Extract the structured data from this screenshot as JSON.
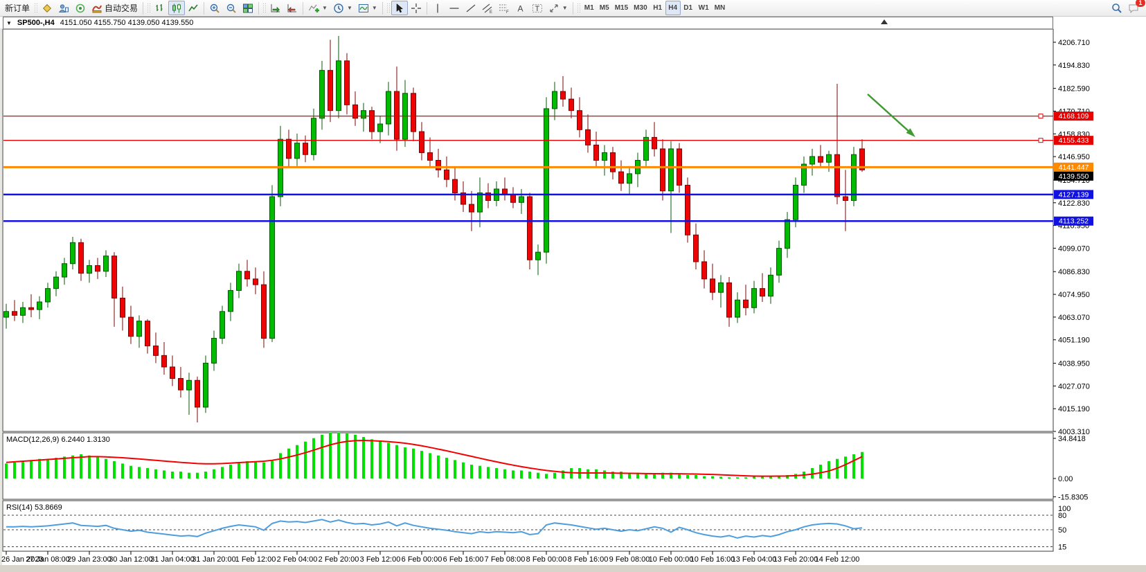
{
  "toolbar": {
    "new_order_label": "新订单",
    "auto_trading_label": "自动交易",
    "timeframes": [
      "M1",
      "M5",
      "M15",
      "M30",
      "H1",
      "H4",
      "D1",
      "W1",
      "MN"
    ],
    "active_timeframe": "H4",
    "notification_count": "1",
    "icon_names": [
      "market-watch-icon",
      "data-window-icon",
      "navigator-icon",
      "autotrading-icon",
      "bar-chart-icon",
      "candlestick-chart-icon",
      "line-chart-icon",
      "zoom-in-icon",
      "zoom-out-icon",
      "tile-windows-icon",
      "auto-scroll-icon",
      "chart-shift-icon",
      "add-indicator-icon",
      "periods-icon",
      "templates-icon",
      "cursor-icon",
      "crosshair-icon",
      "vertical-line-icon",
      "horizontal-line-icon",
      "trendline-icon",
      "equidistant-channel-icon",
      "fibonacci-icon",
      "text-icon",
      "text-label-icon",
      "arrows-icon",
      "search-icon",
      "notification-icon"
    ]
  },
  "chart": {
    "title": "SP500-,H4",
    "ohlc_text": "4151.050 4155.750 4139.050 4139.550"
  },
  "chart_data": {
    "type": "candlestick",
    "symbol": "SP500-",
    "timeframe": "H4",
    "current_bar_ohlc": {
      "open": 4151.05,
      "high": 4155.75,
      "low": 4139.05,
      "close": 4139.55
    },
    "current_price": 4139.55,
    "price_axis": {
      "min": 4003.31,
      "max": 4206.71,
      "ticks": [
        4206.71,
        4194.83,
        4182.59,
        4170.71,
        4158.83,
        4146.95,
        4134.71,
        4122.83,
        4110.95,
        4099.07,
        4086.83,
        4074.95,
        4063.07,
        4051.19,
        4038.95,
        4027.07,
        4015.19,
        4003.31
      ]
    },
    "time_axis": {
      "bars_per_label": 5,
      "labels": [
        "26 Jan 2023",
        "27 Jan 08:00",
        "29 Jan 23:00",
        "30 Jan 12:00",
        "31 Jan 04:00",
        "31 Jan 20:00",
        "1 Feb 12:00",
        "2 Feb 04:00",
        "2 Feb 20:00",
        "3 Feb 12:00",
        "6 Feb 00:00",
        "6 Feb 16:00",
        "7 Feb 08:00",
        "8 Feb 00:00",
        "8 Feb 16:00",
        "9 Feb 08:00",
        "10 Feb 00:00",
        "10 Feb 16:00",
        "13 Feb 04:00",
        "13 Feb 20:00",
        "14 Feb 12:00"
      ]
    },
    "levels": [
      {
        "price": 4168.109,
        "color": "#e60000",
        "width": 1.3,
        "marker": true
      },
      {
        "price": 4155.433,
        "color": "#e60000",
        "width": 1.3,
        "marker": true
      },
      {
        "price": 4141.447,
        "color": "#ff8a00",
        "width": 3,
        "marker": false
      },
      {
        "price": 4127.139,
        "color": "#1212e0",
        "width": 2.5,
        "marker": false
      },
      {
        "price": 4113.252,
        "color": "#1212e0",
        "width": 2.5,
        "marker": false
      }
    ],
    "trend_arrow": {
      "from": [
        1253,
        136
      ],
      "to": [
        1322,
        198
      ],
      "color": "#3f9b32"
    },
    "colors": {
      "bull": "#00bb00",
      "bull_stroke": "#035903",
      "bear": "#ee0404",
      "bear_stroke": "#7e0303",
      "macd_hist": "#00e100",
      "macd_signal": "#f40000",
      "rsi_line": "#4d9ede",
      "level_text": "#ffffff",
      "current_price_box": "#000000",
      "axis_text": "#000000"
    },
    "candles": [
      [
        4063,
        4070,
        4057,
        4066
      ],
      [
        4066,
        4072,
        4061,
        4064
      ],
      [
        4064,
        4071,
        4060,
        4068
      ],
      [
        4068,
        4075,
        4063,
        4067
      ],
      [
        4067,
        4074,
        4062,
        4071
      ],
      [
        4071,
        4081,
        4068,
        4078
      ],
      [
        4078,
        4087,
        4074,
        4084
      ],
      [
        4084,
        4094,
        4080,
        4091
      ],
      [
        4091,
        4105,
        4088,
        4102
      ],
      [
        4102,
        4104,
        4082,
        4086
      ],
      [
        4086,
        4093,
        4081,
        4090
      ],
      [
        4090,
        4094,
        4083,
        4087
      ],
      [
        4087,
        4098,
        4084,
        4095
      ],
      [
        4095,
        4097,
        4058,
        4073
      ],
      [
        4073,
        4079,
        4056,
        4063
      ],
      [
        4063,
        4069,
        4049,
        4053
      ],
      [
        4053,
        4064,
        4047,
        4061
      ],
      [
        4061,
        4062,
        4044,
        4048
      ],
      [
        4048,
        4055,
        4039,
        4043
      ],
      [
        4043,
        4050,
        4033,
        4037
      ],
      [
        4037,
        4043,
        4027,
        4031
      ],
      [
        4031,
        4037,
        4021,
        4025
      ],
      [
        4025,
        4034,
        4012,
        4030
      ],
      [
        4030,
        4032,
        4008,
        4016
      ],
      [
        4016,
        4043,
        4013,
        4039
      ],
      [
        4039,
        4056,
        4035,
        4052
      ],
      [
        4052,
        4069,
        4049,
        4066
      ],
      [
        4066,
        4081,
        4061,
        4077
      ],
      [
        4077,
        4091,
        4073,
        4087
      ],
      [
        4087,
        4093,
        4079,
        4083
      ],
      [
        4083,
        4089,
        4075,
        4080
      ],
      [
        4080,
        4087,
        4047,
        4052
      ],
      [
        4052,
        4132,
        4050,
        4126
      ],
      [
        4126,
        4163,
        4121,
        4156
      ],
      [
        4156,
        4161,
        4141,
        4146
      ],
      [
        4146,
        4159,
        4142,
        4154
      ],
      [
        4154,
        4158,
        4144,
        4148
      ],
      [
        4148,
        4172,
        4145,
        4167
      ],
      [
        4167,
        4197,
        4161,
        4192
      ],
      [
        4192,
        4208,
        4165,
        4171
      ],
      [
        4171,
        4210,
        4167,
        4197
      ],
      [
        4197,
        4201,
        4169,
        4174
      ],
      [
        4174,
        4181,
        4163,
        4167
      ],
      [
        4167,
        4175,
        4160,
        4171
      ],
      [
        4171,
        4173,
        4156,
        4160
      ],
      [
        4160,
        4168,
        4154,
        4164
      ],
      [
        4164,
        4186,
        4158,
        4181
      ],
      [
        4181,
        4194,
        4150,
        4156
      ],
      [
        4156,
        4187,
        4152,
        4180
      ],
      [
        4180,
        4183,
        4155,
        4160
      ],
      [
        4160,
        4165,
        4145,
        4149
      ],
      [
        4149,
        4157,
        4141,
        4145
      ],
      [
        4145,
        4151,
        4136,
        4140
      ],
      [
        4140,
        4147,
        4131,
        4135
      ],
      [
        4135,
        4141,
        4124,
        4128
      ],
      [
        4128,
        4134,
        4118,
        4122
      ],
      [
        4122,
        4129,
        4108,
        4118
      ],
      [
        4118,
        4136,
        4110,
        4128
      ],
      [
        4128,
        4133,
        4120,
        4124
      ],
      [
        4124,
        4134,
        4121,
        4130
      ],
      [
        4130,
        4136,
        4124,
        4127
      ],
      [
        4127,
        4131,
        4120,
        4123
      ],
      [
        4123,
        4130,
        4117,
        4126
      ],
      [
        4126,
        4128,
        4088,
        4093
      ],
      [
        4093,
        4101,
        4085,
        4097
      ],
      [
        4097,
        4178,
        4091,
        4172
      ],
      [
        4172,
        4186,
        4166,
        4181
      ],
      [
        4181,
        4189,
        4173,
        4177
      ],
      [
        4177,
        4183,
        4167,
        4171
      ],
      [
        4171,
        4178,
        4157,
        4161
      ],
      [
        4161,
        4169,
        4149,
        4153
      ],
      [
        4153,
        4160,
        4141,
        4145
      ],
      [
        4145,
        4153,
        4137,
        4149
      ],
      [
        4149,
        4152,
        4135,
        4139
      ],
      [
        4139,
        4145,
        4129,
        4133
      ],
      [
        4133,
        4142,
        4127,
        4138
      ],
      [
        4138,
        4149,
        4131,
        4145
      ],
      [
        4145,
        4161,
        4142,
        4157
      ],
      [
        4157,
        4165,
        4147,
        4151
      ],
      [
        4151,
        4156,
        4124,
        4129
      ],
      [
        4129,
        4155,
        4107,
        4151
      ],
      [
        4151,
        4154,
        4128,
        4132
      ],
      [
        4132,
        4136,
        4102,
        4106
      ],
      [
        4106,
        4112,
        4088,
        4092
      ],
      [
        4092,
        4098,
        4078,
        4083
      ],
      [
        4083,
        4091,
        4072,
        4076
      ],
      [
        4076,
        4085,
        4068,
        4081
      ],
      [
        4081,
        4084,
        4058,
        4063
      ],
      [
        4063,
        4076,
        4060,
        4072
      ],
      [
        4072,
        4080,
        4064,
        4068
      ],
      [
        4068,
        4082,
        4065,
        4078
      ],
      [
        4078,
        4086,
        4071,
        4074
      ],
      [
        4074,
        4089,
        4070,
        4085
      ],
      [
        4085,
        4103,
        4081,
        4099
      ],
      [
        4099,
        4118,
        4094,
        4114
      ],
      [
        4114,
        4136,
        4110,
        4132
      ],
      [
        4132,
        4147,
        4128,
        4143
      ],
      [
        4143,
        4151,
        4137,
        4147
      ],
      [
        4147,
        4153,
        4141,
        4144
      ],
      [
        4144,
        4150,
        4139,
        4148
      ],
      [
        4148,
        4185,
        4122,
        4126
      ],
      [
        4126,
        4140,
        4108,
        4124
      ],
      [
        4124,
        4152,
        4121,
        4148
      ],
      [
        4151,
        4156,
        4139,
        4140
      ]
    ],
    "indicators": {
      "macd": {
        "label": "MACD(12,26,9)",
        "values_text": "6.2440 1.3130",
        "axis_labels": [
          {
            "v": 34.8418,
            "t": "34.8418"
          },
          {
            "v": 0,
            "t": "0.00"
          },
          {
            "v": -15.8305,
            "t": "-15.8305"
          }
        ],
        "histogram": [
          13,
          14,
          15,
          16,
          17,
          17,
          18,
          19,
          20,
          21,
          20,
          19,
          17,
          15,
          13,
          11,
          10,
          9,
          8,
          7,
          6,
          6,
          5,
          5,
          6,
          8,
          10,
          12,
          14,
          15,
          15,
          14,
          16,
          22,
          26,
          29,
          32,
          35,
          38,
          40,
          40,
          39,
          38,
          36,
          34,
          33,
          31,
          29,
          27,
          26,
          24,
          22,
          20,
          18,
          16,
          14,
          12,
          11,
          10,
          9,
          8,
          7,
          7,
          6,
          5,
          4,
          5,
          7,
          9,
          9,
          8,
          8,
          7,
          6,
          6,
          5,
          5,
          4,
          4,
          5,
          5,
          4,
          3,
          3,
          2,
          2,
          1.5,
          1,
          1,
          1,
          1.5,
          2,
          2,
          2.5,
          3,
          4,
          6,
          9,
          12,
          15,
          17,
          19,
          21,
          23
        ],
        "signal": [
          14,
          14.5,
          15,
          15.5,
          16,
          16.5,
          17,
          17.5,
          18,
          18.5,
          19,
          19,
          18.8,
          18.4,
          18,
          17.5,
          17,
          16.4,
          15.8,
          15.2,
          14.6,
          14,
          13.5,
          13,
          12.8,
          12.8,
          13,
          13.4,
          13.8,
          14.2,
          14.6,
          15,
          15.8,
          17,
          18.6,
          20.4,
          22.4,
          24.6,
          27,
          29.2,
          31,
          32.2,
          32.8,
          33,
          32.8,
          32.4,
          32,
          31.4,
          30.6,
          29.6,
          28.4,
          27,
          25.5,
          24,
          22.4,
          20.8,
          19.2,
          17.6,
          16,
          14.5,
          13,
          11.6,
          10.3,
          9.1,
          8,
          7,
          6.2,
          5.5,
          5,
          4.8,
          4.8,
          4.8,
          4.8,
          4.7,
          4.6,
          4.5,
          4.4,
          4.3,
          4.2,
          4.1,
          4.1,
          4.1,
          4,
          3.9,
          3.7,
          3.5,
          3.2,
          2.9,
          2.6,
          2.3,
          2.1,
          2,
          2,
          2.1,
          2.2,
          2.5,
          3,
          3.8,
          5,
          6.5,
          9,
          12,
          15.5,
          19
        ]
      },
      "rsi": {
        "label": "RSI(14)",
        "value_text": "53.8669",
        "axis_labels": [
          {
            "v": 100,
            "t": "100"
          },
          {
            "v": 80,
            "t": "80"
          },
          {
            "v": 50,
            "t": "50"
          },
          {
            "v": 15,
            "t": "15"
          }
        ],
        "dashed_levels": [
          80,
          50,
          15
        ],
        "series": [
          56,
          56,
          57,
          56,
          57,
          58,
          60,
          62,
          64,
          59,
          58,
          57,
          59,
          53,
          50,
          47,
          49,
          45,
          43,
          41,
          39,
          37,
          38,
          36,
          43,
          48,
          53,
          57,
          60,
          58,
          56,
          49,
          63,
          68,
          66,
          67,
          65,
          68,
          71,
          66,
          70,
          65,
          62,
          63,
          60,
          62,
          66,
          58,
          64,
          59,
          56,
          53,
          51,
          49,
          46,
          44,
          42,
          46,
          44,
          46,
          45,
          44,
          46,
          40,
          42,
          60,
          64,
          62,
          60,
          57,
          54,
          51,
          53,
          50,
          47,
          50,
          48,
          52,
          56,
          53,
          45,
          55,
          50,
          44,
          40,
          37,
          35,
          38,
          33,
          37,
          35,
          38,
          36,
          40,
          46,
          50,
          56,
          60,
          62,
          63,
          62,
          58,
          52,
          54
        ]
      }
    }
  }
}
